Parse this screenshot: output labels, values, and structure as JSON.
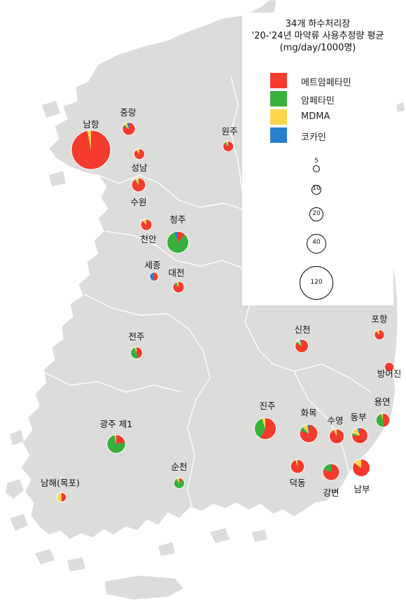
{
  "title": {
    "line1": "34개 하수처리장",
    "line2": "'20-'24년 마약류 사용추정량 평균",
    "line3": "(mg/day/1000명)"
  },
  "colors": {
    "land": "#dcdcda",
    "sea": "#ffffff",
    "border": "#ffffff"
  },
  "legend": {
    "drugs": [
      {
        "key": "meth",
        "label": "메트암페타민",
        "color": "#f43b2e"
      },
      {
        "key": "amph",
        "label": "암페타민",
        "color": "#37b13c"
      },
      {
        "key": "mdma",
        "label": "MDMA",
        "color": "#fbd64a"
      },
      {
        "key": "coca",
        "label": "코카인",
        "color": "#2a7fd1"
      }
    ],
    "sizes": [
      {
        "value": 5,
        "label": "5"
      },
      {
        "value": 10,
        "label": "10"
      },
      {
        "value": 20,
        "label": "20"
      },
      {
        "value": 40,
        "label": "40"
      },
      {
        "value": 120,
        "label": "120"
      }
    ]
  },
  "plants": [
    {
      "name": "남항",
      "total": 120,
      "shares": [
        0.97,
        0,
        0.03,
        0
      ]
    },
    {
      "name": "중랑",
      "total": 13,
      "shares": [
        0.82,
        0.05,
        0.08,
        0.05
      ]
    },
    {
      "name": "성남",
      "total": 9,
      "shares": [
        0.9,
        0,
        0.1,
        0
      ]
    },
    {
      "name": "수원",
      "total": 15,
      "shares": [
        0.88,
        0.04,
        0.08,
        0
      ]
    },
    {
      "name": "원주",
      "total": 9,
      "shares": [
        0.85,
        0.08,
        0.07,
        0
      ]
    },
    {
      "name": "천안",
      "total": 10,
      "shares": [
        0.88,
        0,
        0.12,
        0
      ]
    },
    {
      "name": "청주",
      "total": 37,
      "shares": [
        0.12,
        0.83,
        0,
        0.05
      ]
    },
    {
      "name": "세종",
      "total": 6,
      "shares": [
        0.5,
        0,
        0,
        0.5
      ]
    },
    {
      "name": "대전",
      "total": 10,
      "shares": [
        0.85,
        0.08,
        0.07,
        0
      ]
    },
    {
      "name": "전주",
      "total": 11,
      "shares": [
        0.45,
        0.5,
        0.05,
        0
      ]
    },
    {
      "name": "신천",
      "total": 14,
      "shares": [
        0.82,
        0.05,
        0.08,
        0.05
      ]
    },
    {
      "name": "포항",
      "total": 8,
      "shares": [
        0.88,
        0,
        0.12,
        0
      ]
    },
    {
      "name": "방어진",
      "total": 7,
      "shares": [
        1,
        0,
        0,
        0
      ]
    },
    {
      "name": "용연",
      "total": 15,
      "shares": [
        0.48,
        0.48,
        0.04,
        0
      ]
    },
    {
      "name": "진주",
      "total": 37,
      "shares": [
        0.58,
        0.37,
        0.05,
        0
      ]
    },
    {
      "name": "화목",
      "total": 26,
      "shares": [
        0.8,
        0.08,
        0.1,
        0.02
      ]
    },
    {
      "name": "수영",
      "total": 17,
      "shares": [
        0.93,
        0,
        0.07,
        0
      ]
    },
    {
      "name": "동부",
      "total": 20,
      "shares": [
        0.75,
        0.05,
        0.15,
        0.05
      ]
    },
    {
      "name": "광주 제1",
      "total": 27,
      "shares": [
        0.22,
        0.75,
        0.03,
        0
      ]
    },
    {
      "name": "순천",
      "total": 9,
      "shares": [
        0.12,
        0.8,
        0.08,
        0
      ]
    },
    {
      "name": "덕동",
      "total": 15,
      "shares": [
        0.95,
        0,
        0.05,
        0
      ]
    },
    {
      "name": "강변",
      "total": 22,
      "shares": [
        0.8,
        0.2,
        0,
        0
      ]
    },
    {
      "name": "남부",
      "total": 24,
      "shares": [
        0.85,
        0,
        0.15,
        0
      ]
    },
    {
      "name": "남해(목포)",
      "total": 7,
      "shares": [
        0.5,
        0,
        0.5,
        0
      ]
    }
  ]
}
